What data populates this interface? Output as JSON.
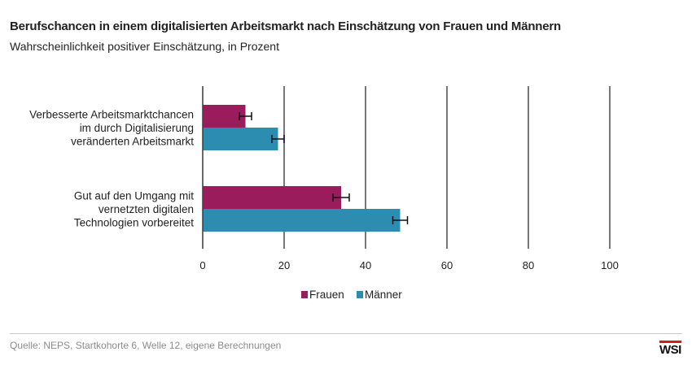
{
  "title": "Berufschancen in einem digitalisierten Arbeitsmarkt nach Einschätzung von Frauen und Männern",
  "subtitle": "Wahrscheinlichkeit positiver Einschätzung, in Prozent",
  "source": "Quelle: NEPS, Startkohorte 6, Welle 12, eigene Berechnungen",
  "logo": "WSI",
  "colors": {
    "frauen": "#9b1c5c",
    "maenner": "#2c8db0",
    "grid": "#555555",
    "axis": "#444444"
  },
  "chart_data": {
    "type": "bar",
    "orientation": "horizontal",
    "categories": [
      [
        "Verbesserte Arbeitsmarktchancen",
        "im durch Digitalisierung",
        "veränderten Arbeitsmarkt"
      ],
      [
        "Gut auf den Umgang mit",
        "vernetzten digitalen",
        "Technologien vorbereitet"
      ]
    ],
    "series": [
      {
        "name": "Frauen",
        "color": "#9b1c5c",
        "values": [
          10.5,
          34
        ],
        "error": [
          1.5,
          2
        ]
      },
      {
        "name": "Männer",
        "color": "#2c8db0",
        "values": [
          18.5,
          48.5
        ],
        "error": [
          1.5,
          1.8
        ]
      }
    ],
    "xlim": [
      0,
      100
    ],
    "xticks": [
      "0",
      "20",
      "40",
      "60",
      "80",
      "100"
    ],
    "grid": true,
    "legend": "bottom-center"
  }
}
